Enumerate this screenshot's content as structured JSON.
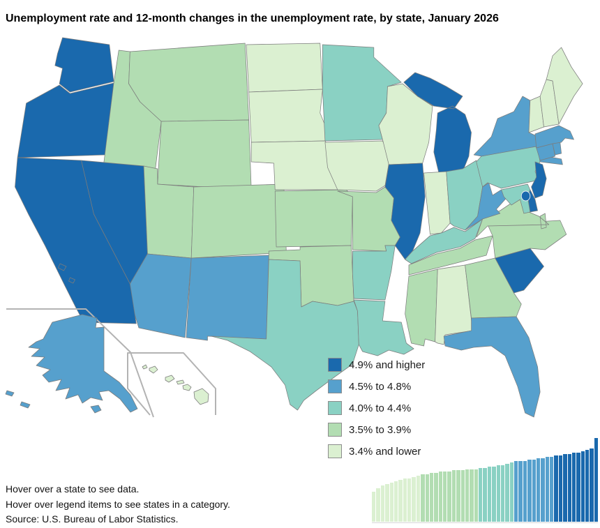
{
  "title": "Unemployment rate and 12-month changes in the unemployment rate, by state, January 2026",
  "legend": {
    "items": [
      {
        "label": "4.9% and higher",
        "color": "#1a69ad"
      },
      {
        "label": "4.5% to 4.8%",
        "color": "#56a0cd"
      },
      {
        "label": "4.0% to 4.4%",
        "color": "#8ad1c3"
      },
      {
        "label": "3.5% to 3.9%",
        "color": "#b2ddb2"
      },
      {
        "label": "3.4% and lower",
        "color": "#dbf0d1"
      }
    ]
  },
  "footer": {
    "line1": "Hover over a state to see data.",
    "line2": "Hover over legend items to see states in a category.",
    "line3": "Source: U.S. Bureau of Labor Statistics."
  },
  "map": {
    "state_categories": {
      "WA": 0,
      "OR": 0,
      "CA": 0,
      "NV": 0,
      "IL": 0,
      "MI": 0,
      "NJ": 0,
      "DE": 0,
      "SC": 0,
      "DC": 0,
      "AK": 1,
      "AZ": 1,
      "NM": 1,
      "NY": 1,
      "MA": 1,
      "CT": 1,
      "RI": 1,
      "WV": 1,
      "FL": 1,
      "MN": 2,
      "PA": 2,
      "OH": 2,
      "KY": 2,
      "MD": 2,
      "TX": 2,
      "LA": 2,
      "AR": 2,
      "MT": 3,
      "ID": 3,
      "WY": 3,
      "UT": 3,
      "CO": 3,
      "KS": 3,
      "MO": 3,
      "OK": 3,
      "TN": 3,
      "MS": 3,
      "VA": 3,
      "NC": 3,
      "GA": 3,
      "ND": 4,
      "SD": 4,
      "NE": 4,
      "IA": 4,
      "WI": 4,
      "IN": 4,
      "AL": 4,
      "ME": 4,
      "VT": 4,
      "NH": 4,
      "HI": 4
    }
  },
  "chart_data": {
    "type": "bar",
    "values": [
      2.2,
      2.5,
      2.7,
      2.8,
      2.9,
      3.0,
      3.1,
      3.2,
      3.2,
      3.3,
      3.4,
      3.5,
      3.5,
      3.6,
      3.6,
      3.7,
      3.7,
      3.7,
      3.8,
      3.8,
      3.8,
      3.9,
      3.9,
      3.9,
      4.0,
      4.0,
      4.1,
      4.1,
      4.2,
      4.2,
      4.3,
      4.4,
      4.5,
      4.5,
      4.5,
      4.6,
      4.6,
      4.7,
      4.7,
      4.8,
      4.8,
      4.9,
      4.9,
      5.0,
      5.0,
      5.1,
      5.1,
      5.2,
      5.3,
      5.4,
      6.2
    ],
    "category_upper_thresholds": [
      3.4,
      3.9,
      4.4,
      4.8
    ],
    "ylim": [
      0,
      6.2
    ],
    "grid": false,
    "sorted": "ascending"
  }
}
